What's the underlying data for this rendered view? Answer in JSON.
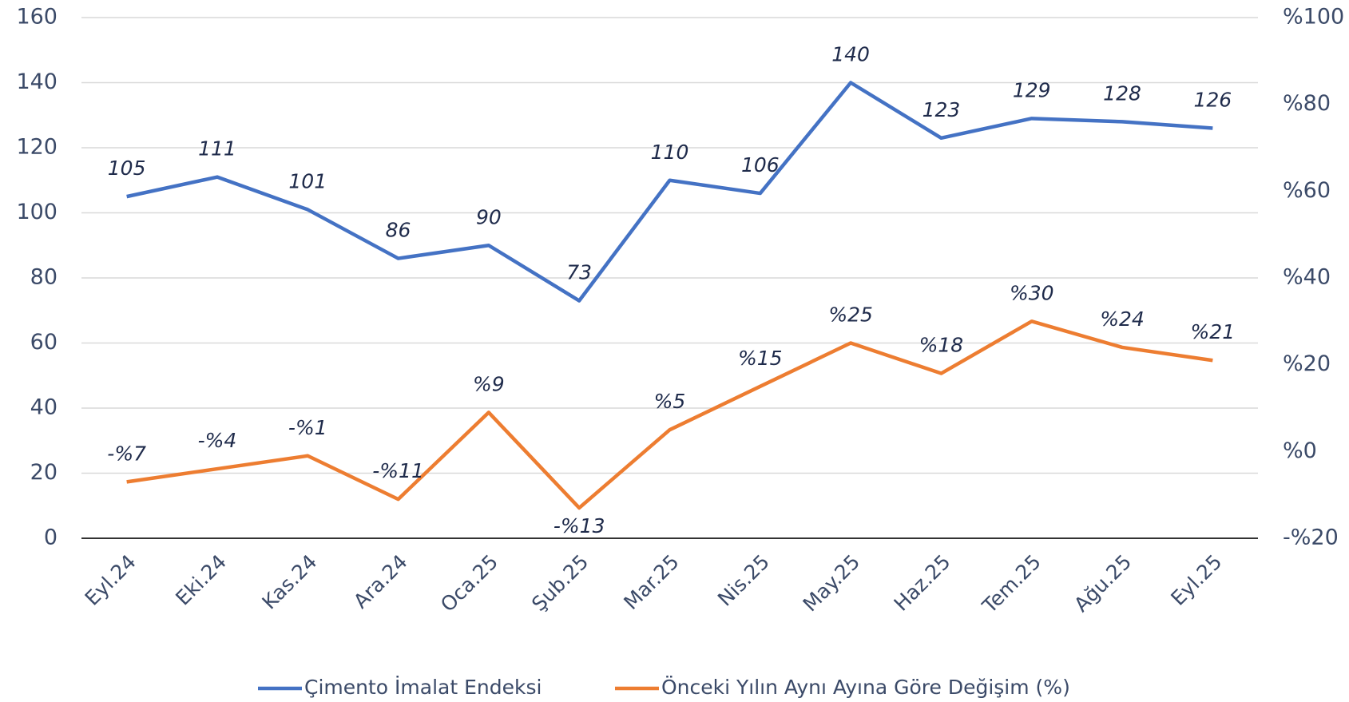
{
  "chart_data": {
    "type": "line",
    "categories": [
      "Eyl.24",
      "Eki.24",
      "Kas.24",
      "Ara.24",
      "Oca.25",
      "Şub.25",
      "Mar.25",
      "Nis.25",
      "May.25",
      "Haz.25",
      "Tem.25",
      "Ağu.25",
      "Eyl.25"
    ],
    "series": [
      {
        "name": "Çimento İmalat Endeksi",
        "color": "#4472c4",
        "values": [
          105,
          111,
          101,
          86,
          90,
          73,
          110,
          106,
          140,
          123,
          129,
          128,
          126
        ]
      },
      {
        "name": "Önceki Yılın Aynı Ayına Göre Değişim (%)",
        "color": "#ed7d31",
        "axis": "y2",
        "values": [
          -7,
          -4,
          -1,
          -11,
          9,
          -13,
          5,
          15,
          25,
          18,
          30,
          24,
          21
        ],
        "value_labels": [
          "-%7",
          "-%4",
          "-%1",
          "-%11",
          "%9",
          "-%13",
          "%5",
          "%15",
          "%25",
          "%18",
          "%30",
          "%24",
          "%21"
        ]
      }
    ],
    "ylim": [
      0,
      160
    ],
    "yticks": [
      0,
      20,
      40,
      60,
      80,
      100,
      120,
      140,
      160
    ],
    "y2lim": [
      -20,
      100
    ],
    "y2ticks": [
      {
        "value": -20,
        "label": "-%20"
      },
      {
        "value": 0,
        "label": "%0"
      },
      {
        "value": 20,
        "label": "%20"
      },
      {
        "value": 40,
        "label": "%40"
      },
      {
        "value": 60,
        "label": "%60"
      },
      {
        "value": 80,
        "label": "%80"
      },
      {
        "value": 100,
        "label": "%100"
      }
    ],
    "grid": true,
    "legend": "bottom"
  }
}
